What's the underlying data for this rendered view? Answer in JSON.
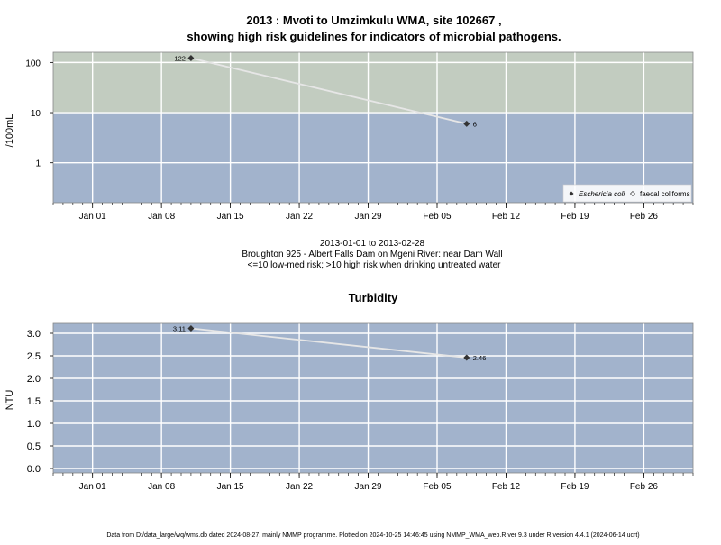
{
  "title_line1": "2013 : Mvoti to Umzimkulu WMA, site 102667 ,",
  "title_line2": "showing high risk guidelines for indicators of microbial pathogens.",
  "caption": {
    "line1": "2013-01-01 to 2013-02-28",
    "line2": "Broughton 925 - Albert Falls Dam on Mgeni River: near Dam Wall",
    "line3": "<=10 low-med risk; >10 high risk when drinking untreated water"
  },
  "footer": "Data from D:/data_large/wq/wms.db dated 2024-08-27, mainly NMMP programme. Plotted on 2024-10-25 14:46:45 using NMMP_WMA_web.R ver 9.3 under R version 4.4.1 (2024-06-14 ucrt)",
  "colors": {
    "high_risk_band": "#c2ccc0",
    "low_risk_band": "#a2b3cc",
    "grid": "#ffffff",
    "series_line": "#e6e6e6",
    "marker": "#333333"
  },
  "chart_data": [
    {
      "type": "line",
      "title": "",
      "ylabel": "/100mL",
      "yscale": "log",
      "x_range": [
        "2012-12-28",
        "2013-03-03"
      ],
      "ylim": [
        0.16,
        160
      ],
      "threshold": 10,
      "yticks": [
        1,
        10,
        100
      ],
      "ytick_labels": [
        "1",
        "10",
        "100"
      ],
      "xticks": [
        "2013-01-01",
        "2013-01-08",
        "2013-01-15",
        "2013-01-22",
        "2013-01-29",
        "2013-02-05",
        "2013-02-12",
        "2013-02-19",
        "2013-02-26"
      ],
      "xtick_labels": [
        "Jan 01",
        "Jan 08",
        "Jan 15",
        "Jan 22",
        "Jan 29",
        "Feb 05",
        "Feb 12",
        "Feb 19",
        "Feb 26"
      ],
      "grid": true,
      "legend_position": "bottom-right",
      "legend": [
        "Eschericia coli",
        "faecal coliforms"
      ],
      "series": [
        {
          "name": "Eschericia coli",
          "x": [
            "2013-01-11",
            "2013-02-08"
          ],
          "y": [
            122,
            6
          ],
          "labels": [
            "122",
            "6"
          ]
        }
      ]
    },
    {
      "type": "line",
      "title": "Turbidity",
      "ylabel": "NTU",
      "yscale": "linear",
      "x_range": [
        "2012-12-28",
        "2013-03-03"
      ],
      "ylim": [
        -0.1,
        3.22
      ],
      "yticks": [
        0,
        0.5,
        1,
        1.5,
        2,
        2.5,
        3
      ],
      "ytick_labels": [
        "0.0",
        "0.5",
        "1.0",
        "1.5",
        "2.0",
        "2.5",
        "3.0"
      ],
      "xticks": [
        "2013-01-01",
        "2013-01-08",
        "2013-01-15",
        "2013-01-22",
        "2013-01-29",
        "2013-02-05",
        "2013-02-12",
        "2013-02-19",
        "2013-02-26"
      ],
      "xtick_labels": [
        "Jan 01",
        "Jan 08",
        "Jan 15",
        "Jan 22",
        "Jan 29",
        "Feb 05",
        "Feb 12",
        "Feb 19",
        "Feb 26"
      ],
      "grid": true,
      "series": [
        {
          "x": [
            "2013-01-11",
            "2013-02-08"
          ],
          "y": [
            3.11,
            2.46
          ],
          "labels": [
            "3.11",
            "2.46"
          ]
        }
      ]
    }
  ]
}
